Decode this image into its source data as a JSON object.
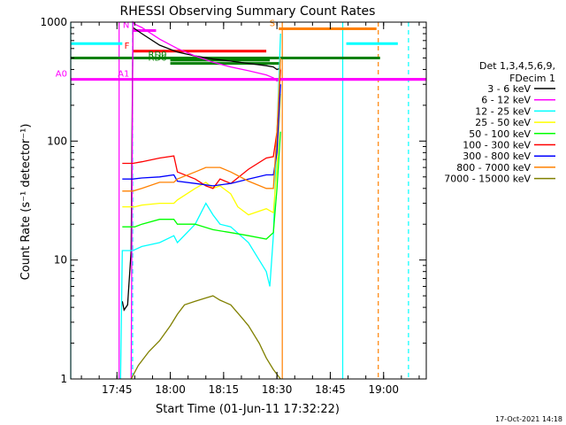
{
  "chart_data": {
    "type": "line",
    "title": "RHESSI Observing Summary Count Rates",
    "xlabel": "Start Time (01-Jun-11 17:32:22)",
    "ylabel": "Count Rate (s⁻¹ detector⁻¹)",
    "y_scale": "log",
    "ylim": [
      1,
      1000
    ],
    "xlim_minutes_after_1732": [
      0,
      100
    ],
    "x_ticks": [
      {
        "label": "17:45",
        "t": 13
      },
      {
        "label": "18:00",
        "t": 28
      },
      {
        "label": "18:15",
        "t": 43
      },
      {
        "label": "18:30",
        "t": 58
      },
      {
        "label": "18:45",
        "t": 73
      },
      {
        "label": "19:00",
        "t": 88
      }
    ],
    "y_ticks": [
      {
        "label": "1",
        "v": 1
      },
      {
        "label": "10",
        "v": 10
      },
      {
        "label": "100",
        "v": 100
      },
      {
        "label": "1000",
        "v": 1000
      }
    ],
    "legend_title": [
      "Det 1,3,4,5,6,9,",
      "FDecim 1"
    ],
    "legend_placement": "right",
    "series": [
      {
        "name": "3 - 6 keV",
        "color": "#000000",
        "t": [
          14.5,
          15,
          16,
          17,
          17.5,
          20,
          25,
          30,
          35,
          40,
          45,
          50,
          55,
          57,
          58,
          59
        ],
        "v": [
          4.5,
          3.8,
          4.2,
          12,
          900,
          800,
          640,
          560,
          520,
          490,
          470,
          450,
          430,
          420,
          400,
          410
        ]
      },
      {
        "name": "6 - 12 keV",
        "color": "#ff00ff",
        "t": [
          17,
          17.5,
          18,
          20,
          25,
          30,
          35,
          40,
          45,
          50,
          55,
          57,
          58,
          59
        ],
        "v": [
          1,
          1000,
          960,
          900,
          720,
          600,
          520,
          460,
          420,
          390,
          360,
          340,
          320,
          330
        ]
      },
      {
        "name": "12 - 25 keV",
        "color": "#00ffff",
        "t": [
          14,
          14.5,
          17,
          17.5,
          20,
          25,
          29,
          30,
          35,
          38,
          40,
          42,
          45,
          50,
          55,
          56,
          57,
          58,
          58.5,
          59
        ],
        "v": [
          1,
          12,
          12,
          12,
          13,
          14,
          16,
          14,
          20,
          30,
          24,
          20,
          19,
          14,
          8,
          6,
          16,
          120,
          300,
          800
        ]
      },
      {
        "name": "25 - 50 keV",
        "color": "#ffff00",
        "t": [
          14.5,
          17,
          18,
          20,
          25,
          29,
          30,
          35,
          38,
          40,
          42,
          45,
          47,
          50,
          55,
          57,
          58,
          59
        ],
        "v": [
          28,
          28,
          28,
          29,
          30,
          30,
          32,
          40,
          45,
          40,
          42,
          36,
          28,
          24,
          27,
          25,
          60,
          250
        ]
      },
      {
        "name": "50 - 100 keV",
        "color": "#00ff00",
        "t": [
          14.5,
          17,
          18,
          20,
          25,
          29,
          30,
          35,
          40,
          45,
          50,
          55,
          57,
          58,
          59
        ],
        "v": [
          19,
          19,
          19,
          20,
          22,
          22,
          20,
          20,
          18,
          17,
          16,
          15,
          17,
          40,
          120
        ]
      },
      {
        "name": "100 - 300 keV",
        "color": "#ff0000",
        "t": [
          14.5,
          17,
          17.5,
          20,
          25,
          29,
          30,
          35,
          38,
          40,
          42,
          45,
          50,
          55,
          57,
          58,
          59
        ],
        "v": [
          65,
          65,
          65,
          67,
          72,
          75,
          55,
          48,
          42,
          40,
          48,
          44,
          58,
          72,
          74,
          120,
          400
        ]
      },
      {
        "name": "300 - 800 keV",
        "color": "#0000ff",
        "t": [
          14.5,
          17,
          17.5,
          20,
          25,
          29,
          30,
          35,
          40,
          45,
          50,
          55,
          57,
          58,
          59
        ],
        "v": [
          48,
          48,
          48,
          49,
          50,
          52,
          46,
          44,
          42,
          44,
          48,
          52,
          52,
          80,
          300
        ]
      },
      {
        "name": "800 - 7000 keV",
        "color": "#ff8000",
        "t": [
          14.5,
          17,
          17.5,
          20,
          25,
          29,
          30,
          35,
          38,
          40,
          42,
          45,
          50,
          55,
          57,
          58,
          59
        ],
        "v": [
          38,
          38,
          38,
          40,
          45,
          45,
          48,
          55,
          60,
          60,
          60,
          55,
          46,
          40,
          40,
          120,
          500
        ]
      },
      {
        "name": "7000 - 15000 keV",
        "color": "#808000",
        "t": [
          17,
          19,
          22,
          25,
          28,
          30,
          32,
          35,
          38,
          40,
          42,
          45,
          48,
          50,
          53,
          55,
          57,
          59
        ],
        "v": [
          1,
          1.3,
          1.7,
          2.1,
          2.8,
          3.5,
          4.2,
          4.5,
          4.8,
          5,
          4.6,
          4.2,
          3.3,
          2.8,
          2.0,
          1.5,
          1.2,
          1
        ]
      }
    ],
    "flag_bars": [
      {
        "label": "N",
        "color": "#ff00ff",
        "from": 17.5,
        "to": 24,
        "level": 850
      },
      {
        "label": "F",
        "color": "#ff0000",
        "from": 17.5,
        "to": 55,
        "level": 570
      },
      {
        "label": "S",
        "color": "#ff8000",
        "from": 58.5,
        "to": 86,
        "level": 880
      },
      {
        "label": "RD0",
        "color": "#008000",
        "from": 28,
        "to": 56,
        "level": 480
      },
      {
        "label": "RD6",
        "color": "#008000",
        "from": 28,
        "to": 59,
        "level": 450
      },
      {
        "label": "A0",
        "color": "#ff00ff",
        "from": 0,
        "to": 100,
        "level": 330
      },
      {
        "label": "A1",
        "color": "#ff00ff",
        "from": 17.5,
        "to": 100,
        "level": 330
      },
      {
        "label": "",
        "color": "#00ffff",
        "from": 0,
        "to": 14.5,
        "level": 660
      },
      {
        "label": "",
        "color": "#00ffff",
        "from": 77.5,
        "to": 92,
        "level": 660
      },
      {
        "label": "",
        "color": "#008000",
        "from": 0,
        "to": 87,
        "level": 500
      }
    ],
    "vlines": [
      {
        "t": 0,
        "color": "#00ffff",
        "dashed": false
      },
      {
        "t": 13.6,
        "color": "#ff00ff",
        "dashed": false
      },
      {
        "t": 17.4,
        "color": "#00ffff",
        "dashed": true
      },
      {
        "t": 59.5,
        "color": "#ff8000",
        "dashed": false
      },
      {
        "t": 76.5,
        "color": "#00ffff",
        "dashed": false
      },
      {
        "t": 86.5,
        "color": "#ff8000",
        "dashed": true
      },
      {
        "t": 95,
        "color": "#00ffff",
        "dashed": true
      }
    ],
    "grid": false
  },
  "footer_timestamp": "17-Oct-2021 14:18"
}
